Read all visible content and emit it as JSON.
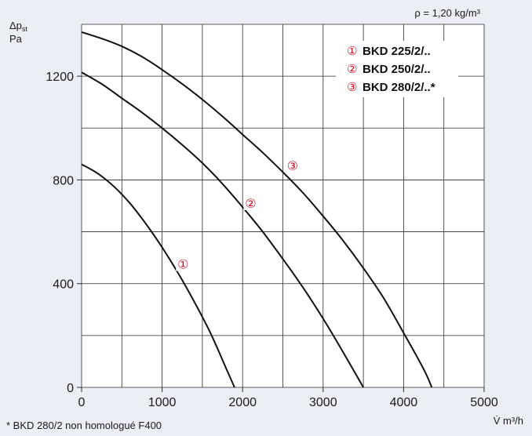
{
  "chart_data": {
    "type": "line",
    "density_note": "ρ = 1,20 kg/m³",
    "ylabel": "Δpst",
    "yunit": "Pa",
    "xlabel": "V̇ m³/h",
    "footnote": "* BKD 280/2 non homologué F400",
    "xlim": [
      0,
      5000
    ],
    "ylim": [
      0,
      1400
    ],
    "x_ticks": [
      0,
      1000,
      2000,
      3000,
      4000,
      5000
    ],
    "x_tick_labels": [
      "0",
      "1000",
      "2000",
      "3000",
      "4000",
      "5000"
    ],
    "y_ticks": [
      0,
      400,
      800,
      1200
    ],
    "y_tick_labels": [
      "0",
      "400",
      "800",
      "1200"
    ],
    "x_grid": [
      0,
      500,
      1000,
      1500,
      2000,
      2500,
      3000,
      3500,
      4000,
      4500,
      5000
    ],
    "y_grid": [
      0,
      200,
      400,
      600,
      800,
      1000,
      1200,
      1400
    ],
    "grid": true,
    "legend_position": "top-right",
    "series": [
      {
        "name": "BKD 225/2/..",
        "marker": "①",
        "marker_at": {
          "x": 1260,
          "y": 470
        },
        "x": [
          0,
          200,
          400,
          600,
          800,
          1000,
          1200,
          1400,
          1600,
          1800,
          1900
        ],
        "y": [
          860,
          825,
          775,
          710,
          630,
          540,
          440,
          330,
          210,
          70,
          0
        ]
      },
      {
        "name": "BKD 250/2/..",
        "marker": "②",
        "marker_at": {
          "x": 2100,
          "y": 705
        },
        "x": [
          0,
          250,
          500,
          750,
          1000,
          1250,
          1500,
          1750,
          2000,
          2250,
          2500,
          2750,
          3000,
          3250,
          3500
        ],
        "y": [
          1215,
          1170,
          1115,
          1060,
          1000,
          935,
          865,
          785,
          695,
          600,
          495,
          385,
          265,
          135,
          0
        ]
      },
      {
        "name": "BKD 280/2/..*",
        "marker": "③",
        "marker_at": {
          "x": 2620,
          "y": 850
        },
        "x": [
          0,
          250,
          500,
          750,
          1000,
          1250,
          1500,
          1750,
          2000,
          2250,
          2500,
          2750,
          3000,
          3250,
          3500,
          3750,
          4000,
          4250,
          4350
        ],
        "y": [
          1370,
          1345,
          1315,
          1275,
          1225,
          1170,
          1110,
          1045,
          975,
          905,
          830,
          750,
          660,
          565,
          460,
          345,
          210,
          70,
          0
        ]
      }
    ]
  }
}
